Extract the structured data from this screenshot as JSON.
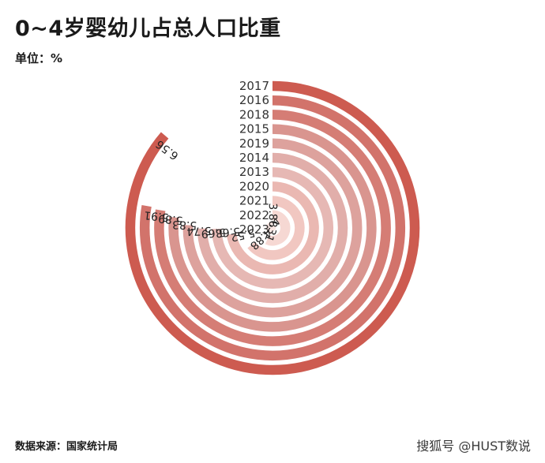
{
  "header": {
    "title": "0~4岁婴幼儿占总人口比重",
    "unit": "单位：%"
  },
  "footer": {
    "source": "数据来源：国家统计局",
    "watermark": "搜狐号 @HUST数说"
  },
  "chart_data": {
    "type": "radial-bar",
    "unit": "%",
    "max_value": 7.6,
    "categories": [
      "2017",
      "2016",
      "2018",
      "2015",
      "2019",
      "2014",
      "2013",
      "2020",
      "2021",
      "2022",
      "2023"
    ],
    "values": [
      6.56,
      5.91,
      5.89,
      5.83,
      5.74,
      5.69,
      5.68,
      5.52,
      4.88,
      4.31,
      3.88
    ],
    "value_labels": [
      "6.56",
      "5.91",
      "5.89",
      "5.83",
      "5.74",
      "5.69",
      "5.68",
      "5.52",
      "4.88",
      "4.31",
      "3.88"
    ],
    "colors": [
      "#cd5b50",
      "#d2736b",
      "#d57d75",
      "#d9958f",
      "#dda29d",
      "#e1aeaa",
      "#e6b8b4",
      "#eab8b2",
      "#f1c7c1",
      "#f6d8d3",
      "#fae7e3"
    ]
  }
}
